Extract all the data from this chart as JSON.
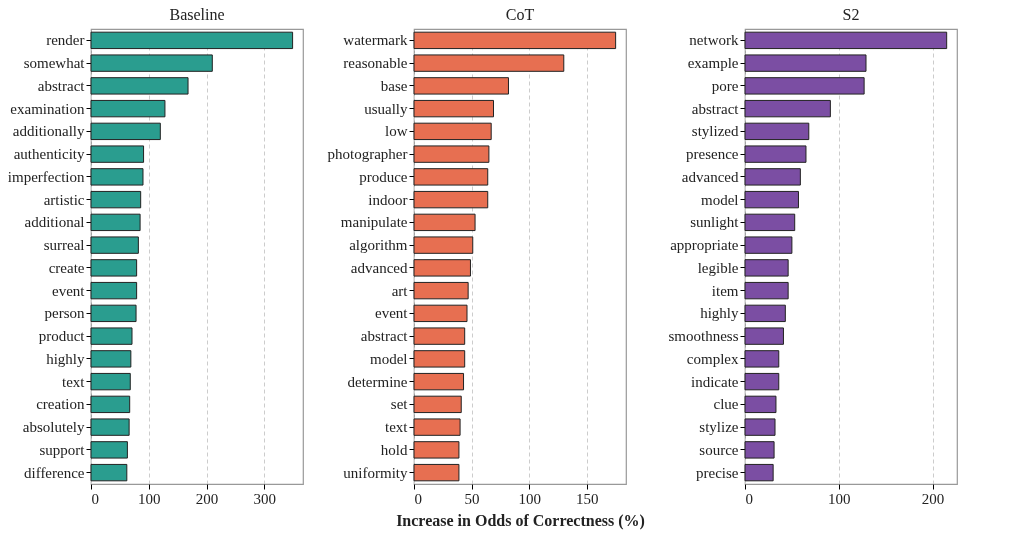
{
  "chart_data": [
    {
      "type": "bar",
      "orientation": "horizontal",
      "title": "Baseline",
      "categories": [
        "render",
        "somewhat",
        "abstract",
        "examination",
        "additionally",
        "authenticity",
        "imperfection",
        "artistic",
        "additional",
        "surreal",
        "create",
        "event",
        "person",
        "product",
        "highly",
        "text",
        "creation",
        "absolutely",
        "support",
        "difference"
      ],
      "series": [
        {
          "color": "#2a9d8f",
          "values": [
            349,
            210,
            168,
            128,
            120,
            91,
            90,
            86,
            85,
            82,
            79,
            79,
            78,
            71,
            69,
            68,
            67,
            66,
            63,
            62
          ]
        }
      ],
      "xlim": [
        0,
        367
      ],
      "xticks": [
        0,
        100,
        200,
        300
      ],
      "grid": "x"
    },
    {
      "type": "bar",
      "orientation": "horizontal",
      "title": "CoT",
      "xlabel": "Increase in Odds of Correctness (%)",
      "categories": [
        "watermark",
        "reasonable",
        "base",
        "usually",
        "low",
        "photographer",
        "produce",
        "indoor",
        "manipulate",
        "algorithm",
        "advanced",
        "art",
        "event",
        "abstract",
        "model",
        "determine",
        "set",
        "text",
        "hold",
        "uniformity"
      ],
      "series": [
        {
          "color": "#e76f51",
          "values": [
            175,
            130,
            82,
            69,
            67,
            65,
            64,
            64,
            53,
            51,
            49,
            47,
            46,
            44,
            44,
            43,
            41,
            40,
            39,
            39
          ]
        }
      ],
      "xlim": [
        0,
        184
      ],
      "xticks": [
        0,
        50,
        100,
        150
      ],
      "grid": "x"
    },
    {
      "type": "bar",
      "orientation": "horizontal",
      "title": "S2",
      "categories": [
        "network",
        "example",
        "pore",
        "abstract",
        "stylized",
        "presence",
        "advanced",
        "model",
        "sunlight",
        "appropriate",
        "legible",
        "item",
        "highly",
        "smoothness",
        "complex",
        "indicate",
        "clue",
        "stylize",
        "source",
        "precise"
      ],
      "series": [
        {
          "color": "#7b4ea3",
          "values": [
            215,
            129,
            127,
            91,
            68,
            65,
            59,
            57,
            53,
            50,
            46,
            46,
            43,
            41,
            36,
            36,
            33,
            32,
            31,
            30
          ]
        }
      ],
      "xlim": [
        0,
        226
      ],
      "xticks": [
        0,
        100,
        200
      ],
      "grid": "x"
    }
  ]
}
